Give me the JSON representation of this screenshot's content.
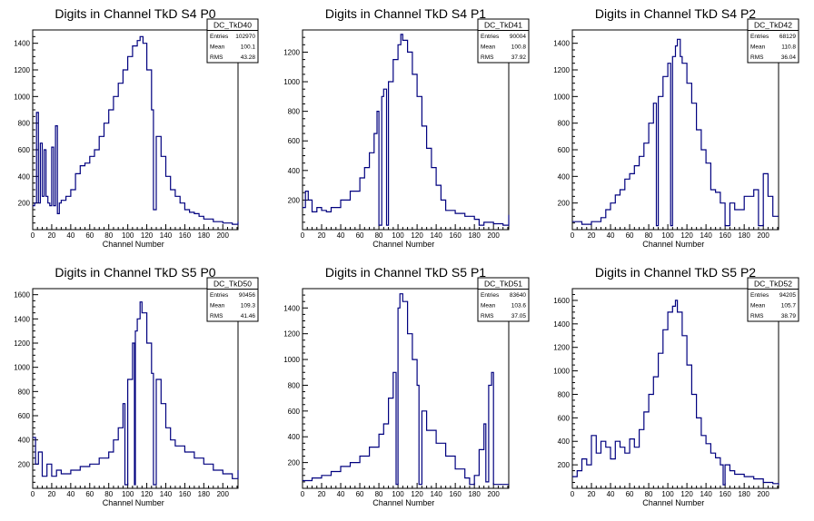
{
  "colors": {
    "line": "#00007f",
    "axis": "#000000",
    "bg": "#ffffff"
  },
  "chart_data": [
    {
      "type": "line",
      "title": "Digits in Channel TkD S4 P0",
      "xlabel": "Channel Number",
      "xlim": [
        0,
        216
      ],
      "ylim": [
        0,
        1500
      ],
      "xticks": [
        0,
        20,
        40,
        60,
        80,
        100,
        120,
        140,
        160,
        180,
        200
      ],
      "yticks": [
        200,
        400,
        600,
        800,
        1000,
        1200,
        1400
      ],
      "stats": {
        "name": "DC_TkD40",
        "rows": [
          [
            "Entries",
            "102970"
          ],
          [
            "Mean",
            "100.1"
          ],
          [
            "RMS",
            "43.28"
          ]
        ]
      },
      "x": [
        0,
        2,
        4,
        6,
        8,
        10,
        12,
        14,
        16,
        18,
        20,
        22,
        24,
        26,
        28,
        30,
        35,
        40,
        45,
        50,
        55,
        60,
        65,
        70,
        75,
        80,
        85,
        90,
        95,
        100,
        105,
        110,
        113,
        116,
        120,
        125,
        127,
        130,
        135,
        140,
        145,
        150,
        155,
        160,
        165,
        170,
        175,
        180,
        190,
        200,
        210,
        216
      ],
      "values": [
        180,
        200,
        880,
        200,
        650,
        250,
        600,
        250,
        200,
        180,
        620,
        180,
        780,
        120,
        200,
        220,
        250,
        300,
        420,
        480,
        500,
        550,
        600,
        700,
        800,
        900,
        1000,
        1100,
        1200,
        1300,
        1380,
        1420,
        1450,
        1400,
        1200,
        900,
        150,
        700,
        550,
        400,
        300,
        250,
        200,
        150,
        130,
        120,
        100,
        80,
        60,
        50,
        40,
        60
      ]
    },
    {
      "type": "line",
      "title": "Digits in Channel TkD S4 P1",
      "xlabel": "Channel Number",
      "xlim": [
        0,
        216
      ],
      "ylim": [
        0,
        1350
      ],
      "xticks": [
        0,
        20,
        40,
        60,
        80,
        100,
        120,
        140,
        160,
        180,
        200
      ],
      "yticks": [
        200,
        400,
        600,
        800,
        1000,
        1200
      ],
      "stats": {
        "name": "DC_TkD41",
        "rows": [
          [
            "Entries",
            "90004"
          ],
          [
            "Mean",
            "100.8"
          ],
          [
            "RMS",
            "37.92"
          ]
        ]
      },
      "x": [
        0,
        3,
        6,
        10,
        15,
        20,
        25,
        30,
        40,
        50,
        60,
        65,
        70,
        75,
        78,
        80,
        83,
        85,
        88,
        90,
        95,
        100,
        103,
        105,
        110,
        115,
        120,
        125,
        130,
        135,
        140,
        145,
        150,
        160,
        170,
        180,
        185,
        190,
        200,
        210,
        216
      ],
      "values": [
        150,
        260,
        200,
        120,
        150,
        130,
        120,
        150,
        200,
        260,
        350,
        420,
        520,
        650,
        800,
        30,
        900,
        950,
        30,
        1000,
        1150,
        1250,
        1320,
        1280,
        1200,
        1050,
        900,
        700,
        550,
        420,
        300,
        200,
        130,
        110,
        90,
        70,
        30,
        50,
        40,
        30,
        100
      ]
    },
    {
      "type": "line",
      "title": "Digits in Channel TkD S4 P2",
      "xlabel": "Channel Number",
      "xlim": [
        0,
        216
      ],
      "ylim": [
        0,
        1500
      ],
      "xticks": [
        0,
        20,
        40,
        60,
        80,
        100,
        120,
        140,
        160,
        180,
        200
      ],
      "yticks": [
        200,
        400,
        600,
        800,
        1000,
        1200,
        1400
      ],
      "stats": {
        "name": "DC_TkD42",
        "rows": [
          [
            "Entries",
            "68129"
          ],
          [
            "Mean",
            "110.8"
          ],
          [
            "RMS",
            "36.04"
          ]
        ]
      },
      "x": [
        0,
        10,
        20,
        30,
        35,
        40,
        45,
        50,
        55,
        60,
        65,
        70,
        75,
        80,
        85,
        88,
        90,
        95,
        100,
        103,
        105,
        108,
        110,
        113,
        115,
        120,
        125,
        130,
        135,
        140,
        145,
        150,
        155,
        160,
        165,
        170,
        180,
        190,
        195,
        200,
        205,
        210
      ],
      "values": [
        60,
        40,
        60,
        90,
        150,
        200,
        260,
        300,
        380,
        420,
        480,
        550,
        650,
        800,
        950,
        30,
        1000,
        1150,
        1250,
        30,
        1300,
        1380,
        1430,
        1300,
        1250,
        1100,
        950,
        750,
        600,
        500,
        300,
        280,
        200,
        30,
        200,
        150,
        250,
        300,
        30,
        420,
        250,
        100
      ]
    },
    {
      "type": "line",
      "title": "Digits in Channel TkD S5 P0",
      "xlabel": "Channel Number",
      "xlim": [
        0,
        216
      ],
      "ylim": [
        0,
        1650
      ],
      "xticks": [
        0,
        20,
        40,
        60,
        80,
        100,
        120,
        140,
        160,
        180,
        200
      ],
      "yticks": [
        200,
        400,
        600,
        800,
        1000,
        1200,
        1400,
        1600
      ],
      "stats": {
        "name": "DC_TkD50",
        "rows": [
          [
            "Entries",
            "90456"
          ],
          [
            "Mean",
            "109.3"
          ],
          [
            "RMS",
            "41.46"
          ]
        ]
      },
      "x": [
        0,
        3,
        6,
        10,
        15,
        20,
        25,
        30,
        40,
        50,
        60,
        70,
        80,
        85,
        90,
        95,
        97,
        100,
        105,
        107,
        108,
        110,
        113,
        115,
        120,
        125,
        127,
        130,
        135,
        140,
        145,
        150,
        160,
        170,
        180,
        190,
        200,
        210,
        216
      ],
      "values": [
        420,
        200,
        300,
        100,
        200,
        100,
        150,
        120,
        150,
        180,
        200,
        250,
        300,
        400,
        500,
        700,
        30,
        900,
        1200,
        30,
        1300,
        1400,
        1540,
        1450,
        1200,
        950,
        30,
        900,
        700,
        500,
        400,
        350,
        300,
        250,
        200,
        150,
        120,
        80,
        150
      ]
    },
    {
      "type": "line",
      "title": "Digits in Channel TkD S5 P1",
      "xlabel": "Channel Number",
      "xlim": [
        0,
        216
      ],
      "ylim": [
        0,
        1550
      ],
      "xticks": [
        0,
        20,
        40,
        60,
        80,
        100,
        120,
        140,
        160,
        180,
        200
      ],
      "yticks": [
        200,
        400,
        600,
        800,
        1000,
        1200,
        1400
      ],
      "stats": {
        "name": "DC_TkD51",
        "rows": [
          [
            "Entries",
            "83640"
          ],
          [
            "Mean",
            "103.6"
          ],
          [
            "RMS",
            "37.05"
          ]
        ]
      },
      "x": [
        0,
        10,
        20,
        30,
        40,
        50,
        60,
        70,
        80,
        85,
        90,
        95,
        98,
        100,
        102,
        105,
        110,
        115,
        120,
        122,
        125,
        130,
        140,
        150,
        160,
        170,
        175,
        180,
        185,
        190,
        192,
        195,
        198,
        200,
        205,
        216
      ],
      "values": [
        60,
        80,
        100,
        130,
        170,
        200,
        250,
        320,
        420,
        500,
        700,
        900,
        30,
        1400,
        1510,
        1450,
        1200,
        1000,
        800,
        30,
        600,
        450,
        350,
        250,
        150,
        80,
        30,
        100,
        300,
        500,
        50,
        800,
        900,
        30,
        30,
        30
      ]
    },
    {
      "type": "line",
      "title": "Digits in Channel TkD S5 P2",
      "xlabel": "Channel Number",
      "xlim": [
        0,
        216
      ],
      "ylim": [
        0,
        1700
      ],
      "xticks": [
        0,
        20,
        40,
        60,
        80,
        100,
        120,
        140,
        160,
        180,
        200
      ],
      "yticks": [
        200,
        400,
        600,
        800,
        1000,
        1200,
        1400,
        1600
      ],
      "stats": {
        "name": "DC_TkD52",
        "rows": [
          [
            "Entries",
            "94205"
          ],
          [
            "Mean",
            "105.7"
          ],
          [
            "RMS",
            "38.79"
          ]
        ]
      },
      "x": [
        0,
        5,
        10,
        15,
        20,
        25,
        30,
        35,
        40,
        45,
        50,
        55,
        60,
        65,
        70,
        75,
        80,
        85,
        90,
        95,
        100,
        105,
        108,
        110,
        115,
        120,
        125,
        130,
        135,
        140,
        145,
        150,
        155,
        158,
        160,
        165,
        170,
        180,
        190,
        200,
        210,
        216
      ],
      "values": [
        100,
        150,
        250,
        200,
        450,
        300,
        400,
        350,
        250,
        400,
        350,
        300,
        420,
        350,
        500,
        650,
        800,
        950,
        1150,
        1350,
        1500,
        1550,
        1600,
        1500,
        1300,
        1050,
        800,
        600,
        450,
        380,
        300,
        260,
        200,
        30,
        200,
        150,
        120,
        100,
        80,
        50,
        40,
        30
      ]
    }
  ]
}
